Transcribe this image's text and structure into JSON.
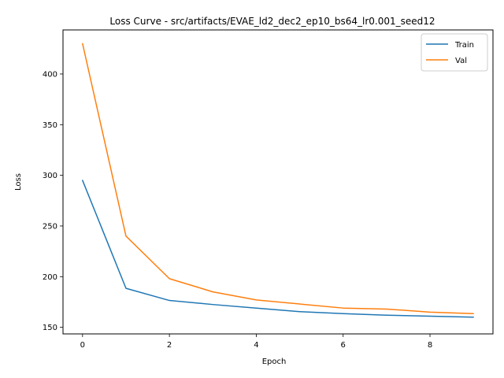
{
  "chart_data": {
    "type": "line",
    "title": "Loss Curve - src/artifacts/EVAE_ld2_dec2_ep10_bs64_lr0.001_seed12",
    "xlabel": "Epoch",
    "ylabel": "Loss",
    "x": [
      0,
      1,
      2,
      3,
      4,
      5,
      6,
      7,
      8,
      9
    ],
    "xlim": [
      -0.45,
      9.45
    ],
    "ylim": [
      143.5,
      443.5
    ],
    "xticks": [
      0,
      2,
      4,
      6,
      8
    ],
    "yticks": [
      150,
      200,
      250,
      300,
      350,
      400
    ],
    "grid": false,
    "legend_position": "top-right",
    "series": [
      {
        "name": "Train",
        "color": "#1f77b4",
        "values": [
          295,
          188.5,
          176.5,
          172.5,
          169,
          165.5,
          163.5,
          162,
          161,
          160
        ]
      },
      {
        "name": "Val",
        "color": "#ff7f0e",
        "values": [
          430,
          240,
          198,
          185,
          177,
          173,
          169,
          168,
          165,
          163.5
        ]
      }
    ]
  }
}
